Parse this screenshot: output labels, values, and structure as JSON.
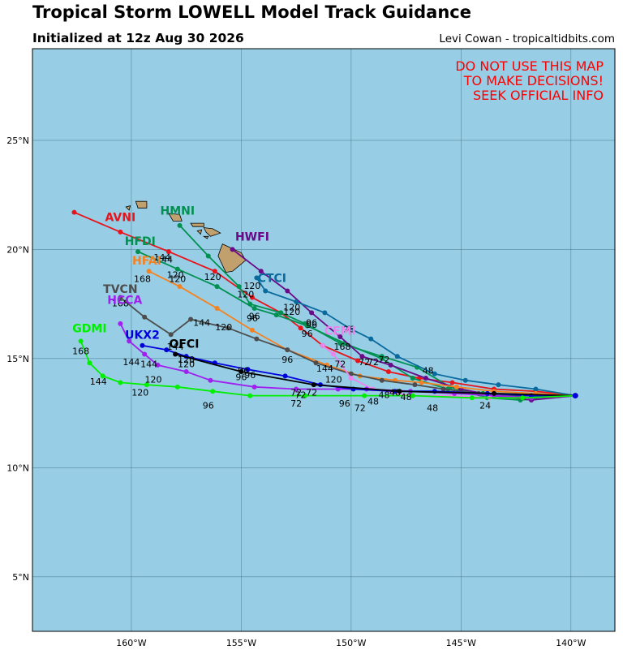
{
  "header": {
    "title": "Tropical Storm LOWELL Model Track Guidance",
    "subtitle": "Initialized at 12z Aug 30 2026",
    "credit": "Levi Cowan - tropicaltidbits.com"
  },
  "warning": [
    "DO NOT USE THIS MAP",
    "TO MAKE DECISIONS!",
    "SEEK OFFICIAL INFO"
  ],
  "colors": {
    "ocean": "#97cee5",
    "land": "#c2a06e",
    "warning": "#ff0000"
  },
  "map": {
    "lon_range": [
      -164.5,
      -138
    ],
    "lat_range": [
      2.5,
      29.2
    ],
    "lon_ticks": [
      -160,
      -155,
      -150,
      -145,
      -140
    ],
    "lon_tick_labels": [
      "160°W",
      "155°W",
      "150°W",
      "145°W",
      "140°W"
    ],
    "lat_ticks": [
      5,
      10,
      15,
      20,
      25
    ],
    "lat_tick_labels": [
      "5°N",
      "10°N",
      "15°N",
      "20°N",
      "25°N"
    ]
  },
  "start": [
    -139.8,
    13.3
  ],
  "models": [
    {
      "name": "AVNI",
      "color": "#e8131b",
      "label_at": [
        -160.5,
        21.3
      ],
      "points": [
        [
          -139.8,
          13.3
        ],
        [
          -141.6,
          13.5
        ],
        [
          -143.5,
          13.6
        ],
        [
          -145.4,
          13.9
        ],
        [
          -146.9,
          14.1
        ],
        [
          -148.3,
          14.4
        ],
        [
          -149.7,
          14.9
        ],
        [
          -151.3,
          15.6
        ],
        [
          -152.3,
          16.4
        ],
        [
          -153.2,
          17.1
        ],
        [
          -154.5,
          17.8
        ],
        [
          -156.2,
          19.0
        ],
        [
          -158.3,
          19.9
        ],
        [
          -160.5,
          20.8
        ],
        [
          -162.6,
          21.7
        ]
      ],
      "hours": [
        {
          "t": "144",
          "at": [
            -158.5,
            19.4
          ]
        },
        {
          "t": "120",
          "at": [
            -156.3,
            18.6
          ]
        },
        {
          "t": "120",
          "at": [
            -152.7,
            17.0
          ]
        },
        {
          "t": "96",
          "at": [
            -151.8,
            16.4
          ]
        },
        {
          "t": "72",
          "at": [
            -148.5,
            14.8
          ]
        },
        {
          "t": "48",
          "at": [
            -146.5,
            14.3
          ]
        }
      ]
    },
    {
      "name": "HMNI",
      "color": "#00904f",
      "label_at": [
        -157.9,
        21.6
      ],
      "points": [
        [
          -139.8,
          13.3
        ],
        [
          -142.3,
          13.1
        ],
        [
          -143.8,
          13.2
        ],
        [
          -145.5,
          13.7
        ],
        [
          -147.0,
          14.6
        ],
        [
          -148.6,
          15.1
        ],
        [
          -150.5,
          15.7
        ],
        [
          -152.1,
          16.6
        ],
        [
          -153.2,
          17.1
        ],
        [
          -154.6,
          17.5
        ],
        [
          -155.1,
          18.3
        ],
        [
          -156.5,
          19.7
        ],
        [
          -157.8,
          21.1
        ]
      ],
      "hours": [
        {
          "t": "120",
          "at": [
            -154.8,
            17.8
          ]
        },
        {
          "t": "96",
          "at": [
            -152.0,
            16.0
          ]
        },
        {
          "t": "72",
          "at": [
            -149.0,
            14.7
          ]
        }
      ]
    },
    {
      "name": "HFDI",
      "color": "#00904f",
      "label_at": [
        -159.6,
        20.2
      ],
      "points": [
        [
          -139.8,
          13.3
        ],
        [
          -142.5,
          13.2
        ],
        [
          -144.0,
          13.4
        ],
        [
          -145.6,
          13.6
        ],
        [
          -147.2,
          14.1
        ],
        [
          -148.6,
          15.0
        ],
        [
          -150.3,
          15.7
        ],
        [
          -152.0,
          16.5
        ],
        [
          -153.4,
          17.0
        ],
        [
          -154.4,
          17.3
        ],
        [
          -156.1,
          18.3
        ],
        [
          -157.9,
          19.1
        ],
        [
          -159.7,
          19.9
        ]
      ],
      "hours": [
        {
          "t": "144",
          "at": [
            -158.6,
            19.5
          ]
        },
        {
          "t": "120",
          "at": [
            -157.9,
            18.5
          ]
        },
        {
          "t": "96",
          "at": [
            -154.4,
            16.8
          ]
        }
      ]
    },
    {
      "name": "HWFI",
      "color": "#6a0a88",
      "label_at": [
        -154.5,
        20.4
      ],
      "points": [
        [
          -139.8,
          13.3
        ],
        [
          -141.8,
          13.1
        ],
        [
          -143.5,
          13.3
        ],
        [
          -145.0,
          13.6
        ],
        [
          -146.6,
          14.1
        ],
        [
          -148.2,
          14.7
        ],
        [
          -149.5,
          15.1
        ],
        [
          -150.5,
          16.0
        ],
        [
          -151.8,
          17.1
        ],
        [
          -152.9,
          18.1
        ],
        [
          -154.1,
          19.0
        ],
        [
          -155.4,
          20.0
        ]
      ],
      "hours": [
        {
          "t": "120",
          "at": [
            -154.5,
            18.2
          ]
        },
        {
          "t": "96",
          "at": [
            -151.8,
            16.5
          ]
        },
        {
          "t": "72",
          "at": [
            -149.4,
            14.7
          ]
        }
      ]
    },
    {
      "name": "CTCI",
      "color": "#0a6a9e",
      "label_at": [
        -153.6,
        18.5
      ],
      "points": [
        [
          -139.8,
          13.3
        ],
        [
          -141.6,
          13.6
        ],
        [
          -143.3,
          13.8
        ],
        [
          -144.8,
          14.0
        ],
        [
          -146.2,
          14.3
        ],
        [
          -147.9,
          15.1
        ],
        [
          -149.1,
          15.9
        ],
        [
          -150.1,
          16.4
        ],
        [
          -151.2,
          17.1
        ],
        [
          -152.5,
          17.6
        ],
        [
          -153.9,
          18.1
        ],
        [
          -154.3,
          18.7
        ]
      ],
      "hours": [
        {
          "t": "120",
          "at": [
            -152.7,
            17.2
          ]
        },
        {
          "t": "96",
          "at": [
            -150.1,
            16.2
          ]
        }
      ]
    },
    {
      "name": "HFAI",
      "color": "#f58220",
      "label_at": [
        -159.3,
        19.3
      ],
      "points": [
        [
          -139.8,
          13.3
        ],
        [
          -141.6,
          13.4
        ],
        [
          -143.5,
          13.5
        ],
        [
          -145.2,
          13.7
        ],
        [
          -146.8,
          13.9
        ],
        [
          -148.0,
          14.0
        ],
        [
          -149.6,
          14.2
        ],
        [
          -151.1,
          14.7
        ],
        [
          -152.9,
          15.4
        ],
        [
          -154.5,
          16.3
        ],
        [
          -156.1,
          17.3
        ],
        [
          -157.8,
          18.3
        ],
        [
          -159.2,
          19.0
        ]
      ],
      "hours": [
        {
          "t": "168",
          "at": [
            -159.5,
            18.5
          ]
        },
        {
          "t": "120",
          "at": [
            -158.0,
            18.7
          ]
        },
        {
          "t": "96",
          "at": [
            -154.5,
            16.7
          ]
        }
      ]
    },
    {
      "name": "TVCN",
      "color": "#4d4d4d",
      "label_at": [
        -160.5,
        18.0
      ],
      "points": [
        [
          -139.8,
          13.3
        ],
        [
          -142.5,
          13.3
        ],
        [
          -144.2,
          13.4
        ],
        [
          -145.8,
          13.6
        ],
        [
          -147.1,
          13.8
        ],
        [
          -148.6,
          14.0
        ],
        [
          -150.0,
          14.3
        ],
        [
          -151.6,
          14.8
        ],
        [
          -152.9,
          15.4
        ],
        [
          -154.3,
          15.9
        ],
        [
          -155.6,
          16.4
        ],
        [
          -157.3,
          16.8
        ],
        [
          -158.2,
          16.1
        ],
        [
          -159.4,
          16.9
        ],
        [
          -160.5,
          17.8
        ]
      ],
      "hours": [
        {
          "t": "168",
          "at": [
            -160.5,
            17.4
          ]
        },
        {
          "t": "144",
          "at": [
            -156.8,
            16.5
          ]
        },
        {
          "t": "120",
          "at": [
            -155.8,
            16.3
          ]
        },
        {
          "t": "96",
          "at": [
            -152.9,
            14.8
          ]
        },
        {
          "t": "72",
          "at": [
            -150.5,
            14.6
          ]
        }
      ]
    },
    {
      "name": "CEMI",
      "color": "#ee82ee",
      "label_at": [
        -150.5,
        16.1
      ],
      "points": [
        [
          -139.8,
          13.3
        ],
        [
          -141.8,
          13.2
        ],
        [
          -143.7,
          13.2
        ],
        [
          -145.4,
          13.3
        ],
        [
          -147.2,
          13.3
        ],
        [
          -149.0,
          13.6
        ],
        [
          -150.0,
          14.1
        ],
        [
          -150.8,
          15.2
        ],
        [
          -151.3,
          15.6
        ]
      ],
      "hours": [
        {
          "t": "168",
          "at": [
            -150.4,
            15.4
          ]
        },
        {
          "t": "144",
          "at": [
            -151.2,
            14.4
          ]
        },
        {
          "t": "120",
          "at": [
            -150.8,
            13.9
          ]
        },
        {
          "t": "48",
          "at": [
            -147.5,
            13.1
          ]
        },
        {
          "t": "48",
          "at": [
            -149.0,
            12.9
          ]
        }
      ]
    },
    {
      "name": "HCCA",
      "color": "#a020f0",
      "label_at": [
        -160.3,
        17.5
      ],
      "points": [
        [
          -139.8,
          13.3
        ],
        [
          -141.8,
          13.2
        ],
        [
          -143.5,
          13.3
        ],
        [
          -145.3,
          13.4
        ],
        [
          -147.3,
          13.5
        ],
        [
          -149.3,
          13.6
        ],
        [
          -150.6,
          13.6
        ],
        [
          -152.5,
          13.6
        ],
        [
          -154.4,
          13.7
        ],
        [
          -156.4,
          14.0
        ],
        [
          -157.5,
          14.4
        ],
        [
          -158.8,
          14.7
        ],
        [
          -159.4,
          15.2
        ],
        [
          -160.1,
          15.8
        ],
        [
          -160.5,
          16.6
        ]
      ],
      "hours": [
        {
          "t": "144",
          "at": [
            -160.0,
            14.7
          ]
        },
        {
          "t": "144",
          "at": [
            -159.2,
            14.6
          ]
        },
        {
          "t": "120",
          "at": [
            -157.5,
            14.8
          ]
        },
        {
          "t": "96",
          "at": [
            -154.9,
            14.3
          ]
        },
        {
          "t": "72",
          "at": [
            -152.3,
            13.2
          ]
        },
        {
          "t": "48",
          "at": [
            -148.5,
            13.2
          ]
        }
      ]
    },
    {
      "name": "UKX2",
      "color": "#0000dd",
      "label_at": [
        -159.5,
        15.9
      ],
      "points": [
        [
          -139.8,
          13.3
        ],
        [
          -141.8,
          13.3
        ],
        [
          -143.8,
          13.4
        ],
        [
          -146.2,
          13.5
        ],
        [
          -148.0,
          13.5
        ],
        [
          -149.9,
          13.6
        ],
        [
          -151.4,
          13.8
        ],
        [
          -153.0,
          14.2
        ],
        [
          -154.7,
          14.5
        ],
        [
          -156.2,
          14.8
        ],
        [
          -157.5,
          15.1
        ],
        [
          -158.4,
          15.4
        ],
        [
          -159.5,
          15.6
        ]
      ],
      "hours": [
        {
          "t": "144",
          "at": [
            -158.0,
            15.4
          ]
        },
        {
          "t": "120",
          "at": [
            -159.0,
            13.9
          ]
        },
        {
          "t": "96",
          "at": [
            -155.0,
            14.0
          ]
        },
        {
          "t": "72",
          "at": [
            -152.5,
            13.3
          ]
        }
      ]
    },
    {
      "name": "OFCI",
      "color": "#000000",
      "label_at": [
        -157.6,
        15.5
      ],
      "points": [
        [
          -139.8,
          13.3
        ],
        [
          -143.5,
          13.4
        ],
        [
          -147.8,
          13.5
        ],
        [
          -151.7,
          13.8
        ],
        [
          -155.0,
          14.4
        ],
        [
          -158.0,
          15.2
        ]
      ],
      "hours": [
        {
          "t": "120",
          "at": [
            -157.5,
            14.6
          ]
        },
        {
          "t": "96",
          "at": [
            -154.6,
            14.1
          ]
        },
        {
          "t": "72",
          "at": [
            -151.8,
            13.3
          ]
        },
        {
          "t": "48",
          "at": [
            -148.0,
            13.3
          ]
        },
        {
          "t": "24",
          "at": [
            -143.9,
            12.7
          ]
        }
      ]
    },
    {
      "name": "GDMI",
      "color": "#00ee00",
      "label_at": [
        -161.9,
        16.2
      ],
      "points": [
        [
          -139.8,
          13.3
        ],
        [
          -142.2,
          13.2
        ],
        [
          -144.5,
          13.2
        ],
        [
          -147.2,
          13.3
        ],
        [
          -149.4,
          13.3
        ],
        [
          -152.1,
          13.3
        ],
        [
          -154.6,
          13.3
        ],
        [
          -156.3,
          13.5
        ],
        [
          -157.9,
          13.7
        ],
        [
          -159.3,
          13.8
        ],
        [
          -160.5,
          13.9
        ],
        [
          -161.3,
          14.2
        ],
        [
          -161.9,
          14.8
        ],
        [
          -162.3,
          15.8
        ]
      ],
      "hours": [
        {
          "t": "168",
          "at": [
            -162.3,
            15.2
          ]
        },
        {
          "t": "144",
          "at": [
            -161.5,
            13.8
          ]
        },
        {
          "t": "120",
          "at": [
            -159.6,
            13.3
          ]
        },
        {
          "t": "96",
          "at": [
            -156.5,
            12.7
          ]
        },
        {
          "t": "96",
          "at": [
            -150.3,
            12.8
          ]
        },
        {
          "t": "72",
          "at": [
            -152.5,
            12.8
          ]
        },
        {
          "t": "72",
          "at": [
            -149.6,
            12.6
          ]
        },
        {
          "t": "48",
          "at": [
            -146.3,
            12.6
          ]
        }
      ]
    }
  ],
  "islands": [
    {
      "name": "Kauai",
      "pts": [
        [
          -159.8,
          22.2
        ],
        [
          -159.3,
          22.2
        ],
        [
          -159.3,
          21.9
        ],
        [
          -159.7,
          21.9
        ]
      ]
    },
    {
      "name": "Niihau",
      "pts": [
        [
          -160.25,
          21.95
        ],
        [
          -160.05,
          22.0
        ],
        [
          -160.1,
          21.8
        ]
      ]
    },
    {
      "name": "Oahu",
      "pts": [
        [
          -158.3,
          21.65
        ],
        [
          -157.8,
          21.6
        ],
        [
          -157.7,
          21.3
        ],
        [
          -158.1,
          21.3
        ]
      ]
    },
    {
      "name": "Molokai",
      "pts": [
        [
          -157.3,
          21.2
        ],
        [
          -156.7,
          21.2
        ],
        [
          -156.7,
          21.05
        ],
        [
          -157.2,
          21.05
        ]
      ]
    },
    {
      "name": "Lanai",
      "pts": [
        [
          -157.0,
          20.85
        ],
        [
          -156.8,
          20.9
        ],
        [
          -156.85,
          20.7
        ]
      ]
    },
    {
      "name": "Maui",
      "pts": [
        [
          -156.7,
          21.0
        ],
        [
          -156.3,
          20.95
        ],
        [
          -155.95,
          20.75
        ],
        [
          -156.4,
          20.6
        ],
        [
          -156.6,
          20.8
        ]
      ]
    },
    {
      "name": "Kahoolawe",
      "pts": [
        [
          -156.7,
          20.6
        ],
        [
          -156.5,
          20.6
        ],
        [
          -156.55,
          20.5
        ]
      ]
    },
    {
      "name": "Hawaii",
      "pts": [
        [
          -155.85,
          20.25
        ],
        [
          -155.0,
          19.85
        ],
        [
          -154.8,
          19.5
        ],
        [
          -155.4,
          19.0
        ],
        [
          -155.7,
          18.95
        ],
        [
          -156.05,
          19.7
        ],
        [
          -155.95,
          20.0
        ]
      ]
    }
  ]
}
